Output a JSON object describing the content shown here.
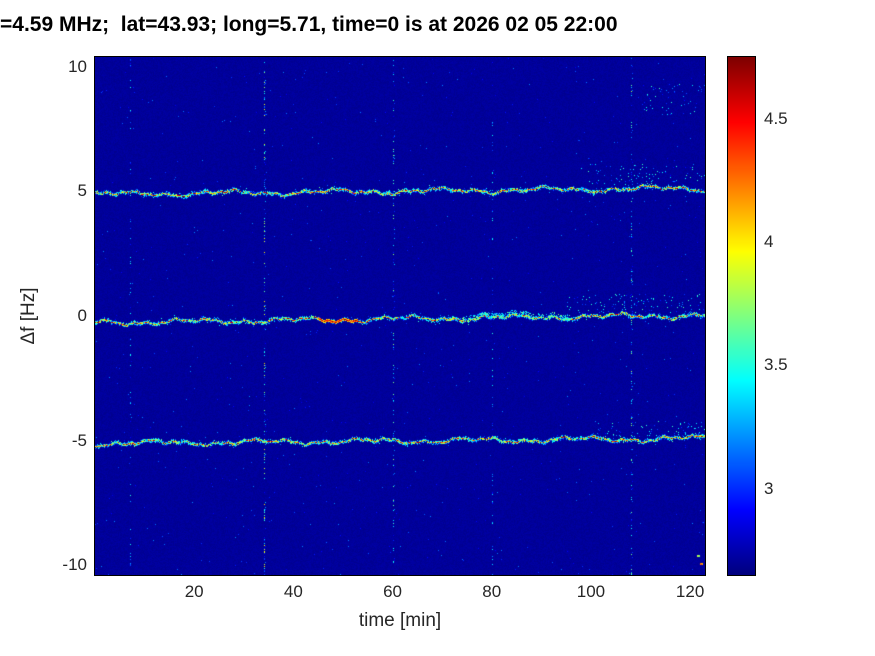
{
  "chart_data": {
    "type": "heatmap",
    "title": "=4.59 MHz;  lat=43.93; long=5.71, time=0 is at 2026 02 05 22:00",
    "xlabel": "time [min]",
    "ylabel": "Δf [Hz]",
    "xlim": [
      0,
      123
    ],
    "ylim": [
      -10.4,
      10.4
    ],
    "xticks": [
      20,
      40,
      60,
      80,
      100,
      120
    ],
    "yticks": [
      -10,
      -5,
      0,
      5,
      10
    ],
    "grid": false,
    "colorbar": {
      "colormap": "jet",
      "clim": [
        2.65,
        4.75
      ],
      "ticks": [
        3,
        3.5,
        4,
        4.5
      ],
      "position": "right"
    },
    "background_value": 2.7,
    "traces": [
      {
        "name": "upper-doppler-trace",
        "center_hz": 5,
        "drift_hz": [
          -0.1,
          0.15
        ],
        "value_range": [
          3.3,
          4.7
        ]
      },
      {
        "name": "carrier-trace",
        "center_hz": 0,
        "drift_hz": [
          -0.25,
          0.05
        ],
        "value_range": [
          3.3,
          4.7
        ],
        "bursts": [
          {
            "t_range": [
              45,
              53
            ],
            "type": "hot"
          },
          {
            "t_range": [
              74,
              96
            ],
            "type": "cyan-spread"
          }
        ]
      },
      {
        "name": "lower-doppler-trace",
        "center_hz": -5,
        "drift_hz": [
          -0.1,
          0.1
        ],
        "value_range": [
          3.3,
          4.7
        ]
      }
    ],
    "vertical_streaks": [
      {
        "t_min": 7,
        "strength": 0.3
      },
      {
        "t_min": 34,
        "strength": 0.9
      },
      {
        "t_min": 60,
        "strength": 0.55
      },
      {
        "t_min": 80,
        "strength": 0.3
      },
      {
        "t_min": 108,
        "strength": 0.6
      }
    ],
    "speckle_regions": [
      {
        "t_range": [
          98,
          123
        ],
        "f_range": [
          5.3,
          6.1
        ],
        "density": 0.04
      },
      {
        "t_range": [
          110,
          123
        ],
        "f_range": [
          8.1,
          9.3
        ],
        "density": 0.03
      },
      {
        "t_range": [
          95,
          123
        ],
        "f_range": [
          0.1,
          0.9
        ],
        "density": 0.04
      },
      {
        "t_range": [
          100,
          123
        ],
        "f_range": [
          -4.8,
          -4.2
        ],
        "density": 0.04
      }
    ],
    "hotspots": [
      {
        "t_min": 122,
        "f_hz": -9.9,
        "value": 4.4
      },
      {
        "t_min": 121.3,
        "f_hz": -9.6,
        "value": 4.0
      }
    ]
  }
}
